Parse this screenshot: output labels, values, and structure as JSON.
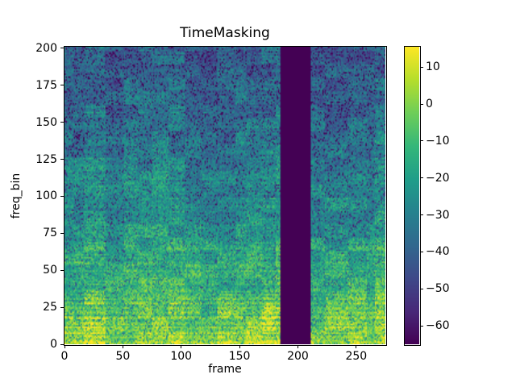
{
  "figure": {
    "title": "TimeMasking",
    "background_color": "#ffffff",
    "text_color": "#000000"
  },
  "chart_data": {
    "type": "heatmap",
    "title": "TimeMasking",
    "xlabel": "frame",
    "ylabel": "freq_bin",
    "x_range": [
      0,
      275
    ],
    "y_range": [
      0,
      201
    ],
    "x_ticks": [
      0,
      50,
      100,
      150,
      200,
      250
    ],
    "x_tick_labels": [
      "0",
      "50",
      "100",
      "150",
      "200",
      "250"
    ],
    "y_ticks": [
      0,
      25,
      50,
      75,
      100,
      125,
      150,
      175,
      200
    ],
    "y_tick_labels": [
      "0",
      "25",
      "50",
      "75",
      "100",
      "125",
      "150",
      "175",
      "200"
    ],
    "grid": false,
    "legend": null,
    "colormap": "viridis",
    "value_range": [
      -65,
      15.5
    ],
    "colorbar": {
      "position": "right",
      "ticks": [
        10,
        0,
        -10,
        -20,
        -30,
        -40,
        -50,
        -60
      ],
      "tick_labels": [
        "10",
        "0",
        "−10",
        "−20",
        "−30",
        "−40",
        "−50",
        "−60"
      ]
    },
    "mask": {
      "axis": "time",
      "start_frame": 185,
      "end_frame": 211,
      "fill": "min_value",
      "fill_color": "#440154"
    },
    "description": "Log-power spectrogram (dB) with a TimeMasking augmentation: frames 185-211 are replaced by the minimum value, forming a solid dark purple vertical band. Low frequency bins (0-40) carry bright yellow-green harmonic streaks near 0 to +15 dB; energy decays to -35..-65 dB at high bins, with speckled block texture in both time segments and frequency bands.",
    "texture": {
      "seed": 1337,
      "n_frames": 275,
      "n_bins": 201,
      "viridis_anchors": [
        "#440154",
        "#482878",
        "#3e4989",
        "#31688e",
        "#26828e",
        "#1f9e89",
        "#35b779",
        "#6ece58",
        "#b5de2b",
        "#fde725"
      ]
    }
  }
}
